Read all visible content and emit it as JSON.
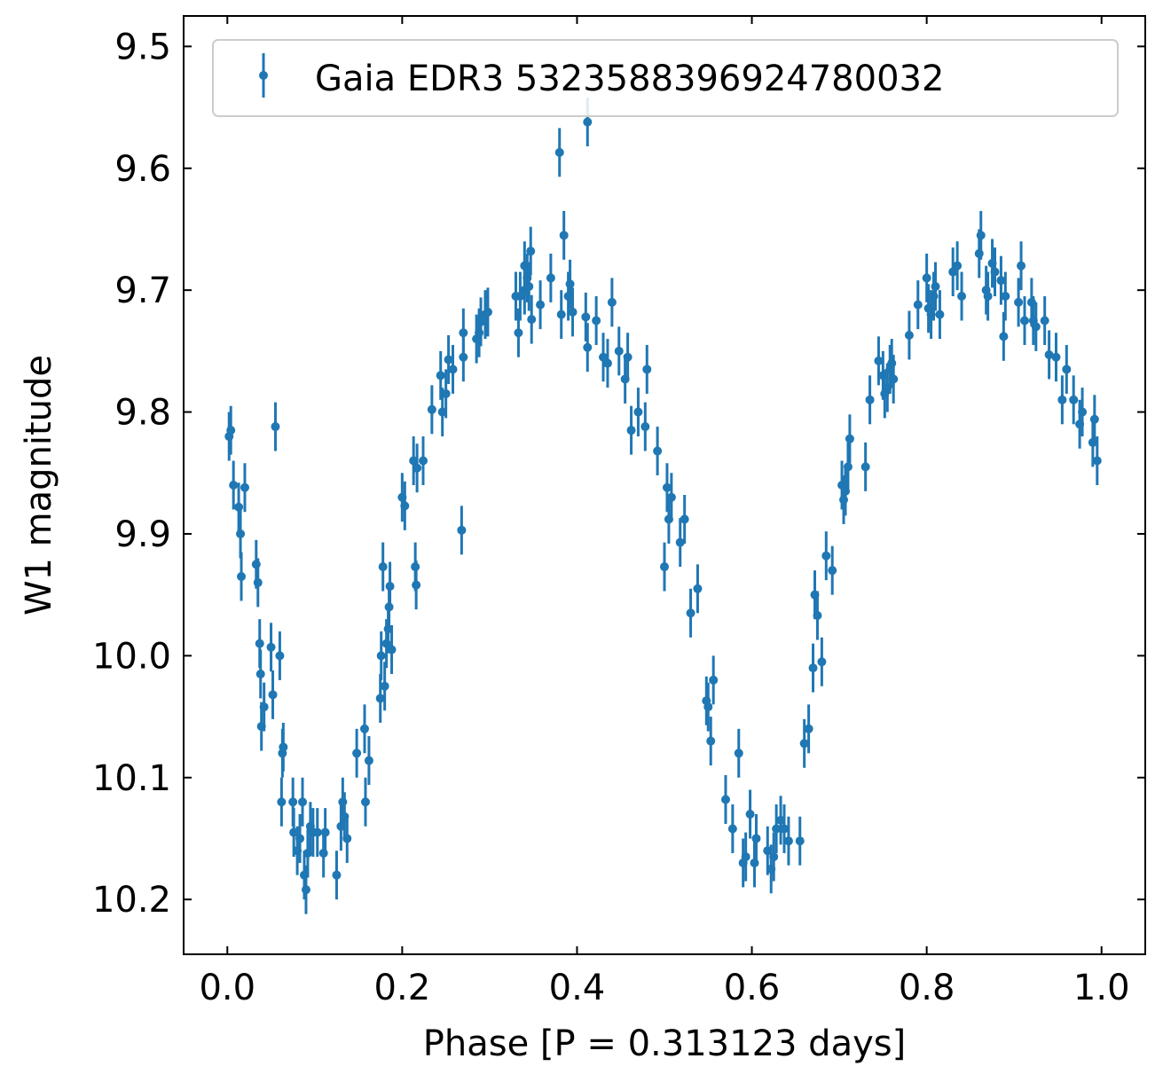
{
  "chart_data": {
    "type": "scatter",
    "xlabel": "Phase [P = 0.313123 days]",
    "ylabel": "W1 magnitude",
    "xlim": [
      -0.05,
      1.05
    ],
    "ylim": [
      10.245,
      9.475
    ],
    "y_inverted": true,
    "x_ticks": [
      0.0,
      0.2,
      0.4,
      0.6,
      0.8,
      1.0
    ],
    "x_tick_labels": [
      "0.0",
      "0.2",
      "0.4",
      "0.6",
      "0.8",
      "1.0"
    ],
    "y_ticks": [
      9.5,
      9.6,
      9.7,
      9.8,
      9.9,
      10.0,
      10.1,
      10.2
    ],
    "y_tick_labels": [
      "9.5",
      "9.6",
      "9.7",
      "9.8",
      "9.9",
      "10.0",
      "10.1",
      "10.2"
    ],
    "grid": false,
    "ticks_direction": "in",
    "legend_position": "top-right",
    "series": [
      {
        "name": "Gaia EDR3 5323588396924780032",
        "color": "#1f77b4",
        "marker": "point-with-errorbar",
        "error": 0.02,
        "points": [
          [
            0.002,
            9.82
          ],
          [
            0.004,
            9.815
          ],
          [
            0.007,
            9.86
          ],
          [
            0.013,
            9.878
          ],
          [
            0.015,
            9.9
          ],
          [
            0.016,
            9.935
          ],
          [
            0.02,
            9.862
          ],
          [
            0.033,
            9.925
          ],
          [
            0.035,
            9.94
          ],
          [
            0.037,
            9.99
          ],
          [
            0.038,
            10.015
          ],
          [
            0.039,
            10.058
          ],
          [
            0.042,
            10.042
          ],
          [
            0.05,
            9.993
          ],
          [
            0.052,
            10.032
          ],
          [
            0.055,
            9.812
          ],
          [
            0.06,
            10.0
          ],
          [
            0.062,
            10.12
          ],
          [
            0.063,
            10.08
          ],
          [
            0.064,
            10.075
          ],
          [
            0.075,
            10.12
          ],
          [
            0.076,
            10.145
          ],
          [
            0.08,
            10.16
          ],
          [
            0.083,
            10.15
          ],
          [
            0.086,
            10.12
          ],
          [
            0.088,
            10.18
          ],
          [
            0.09,
            10.192
          ],
          [
            0.092,
            10.162
          ],
          [
            0.095,
            10.14
          ],
          [
            0.098,
            10.145
          ],
          [
            0.103,
            10.145
          ],
          [
            0.11,
            10.162
          ],
          [
            0.112,
            10.145
          ],
          [
            0.125,
            10.18
          ],
          [
            0.13,
            10.14
          ],
          [
            0.132,
            10.12
          ],
          [
            0.134,
            10.132
          ],
          [
            0.137,
            10.15
          ],
          [
            0.148,
            10.08
          ],
          [
            0.157,
            10.06
          ],
          [
            0.158,
            10.12
          ],
          [
            0.162,
            10.086
          ],
          [
            0.175,
            10.035
          ],
          [
            0.176,
            10.0
          ],
          [
            0.178,
            9.927
          ],
          [
            0.18,
            10.025
          ],
          [
            0.182,
            9.99
          ],
          [
            0.184,
            9.978
          ],
          [
            0.185,
            9.96
          ],
          [
            0.186,
            9.943
          ],
          [
            0.188,
            9.995
          ],
          [
            0.2,
            9.87
          ],
          [
            0.203,
            9.877
          ],
          [
            0.213,
            9.84
          ],
          [
            0.215,
            9.927
          ],
          [
            0.216,
            9.942
          ],
          [
            0.217,
            9.846
          ],
          [
            0.224,
            9.84
          ],
          [
            0.234,
            9.798
          ],
          [
            0.244,
            9.77
          ],
          [
            0.246,
            9.8
          ],
          [
            0.25,
            9.785
          ],
          [
            0.253,
            9.757
          ],
          [
            0.258,
            9.765
          ],
          [
            0.268,
            9.897
          ],
          [
            0.27,
            9.735
          ],
          [
            0.27,
            9.755
          ],
          [
            0.285,
            9.74
          ],
          [
            0.288,
            9.735
          ],
          [
            0.29,
            9.726
          ],
          [
            0.295,
            9.72
          ],
          [
            0.298,
            9.718
          ],
          [
            0.33,
            9.705
          ],
          [
            0.333,
            9.735
          ],
          [
            0.335,
            9.705
          ],
          [
            0.34,
            9.7
          ],
          [
            0.34,
            9.68
          ],
          [
            0.343,
            9.69
          ],
          [
            0.345,
            9.697
          ],
          [
            0.347,
            9.668
          ],
          [
            0.348,
            9.724
          ],
          [
            0.358,
            9.712
          ],
          [
            0.37,
            9.69
          ],
          [
            0.38,
            9.587
          ],
          [
            0.382,
            9.72
          ],
          [
            0.385,
            9.655
          ],
          [
            0.39,
            9.705
          ],
          [
            0.392,
            9.695
          ],
          [
            0.395,
            9.718
          ],
          [
            0.41,
            9.722
          ],
          [
            0.412,
            9.747
          ],
          [
            0.412,
            9.562
          ],
          [
            0.422,
            9.725
          ],
          [
            0.43,
            9.755
          ],
          [
            0.435,
            9.76
          ],
          [
            0.44,
            9.71
          ],
          [
            0.448,
            9.75
          ],
          [
            0.455,
            9.773
          ],
          [
            0.458,
            9.755
          ],
          [
            0.462,
            9.815
          ],
          [
            0.47,
            9.8
          ],
          [
            0.478,
            9.812
          ],
          [
            0.48,
            9.765
          ],
          [
            0.492,
            9.832
          ],
          [
            0.5,
            9.927
          ],
          [
            0.503,
            9.862
          ],
          [
            0.505,
            9.888
          ],
          [
            0.508,
            9.87
          ],
          [
            0.518,
            9.907
          ],
          [
            0.523,
            9.888
          ],
          [
            0.53,
            9.965
          ],
          [
            0.538,
            9.945
          ],
          [
            0.548,
            10.037
          ],
          [
            0.55,
            10.042
          ],
          [
            0.553,
            10.07
          ],
          [
            0.556,
            10.02
          ],
          [
            0.57,
            10.118
          ],
          [
            0.578,
            10.142
          ],
          [
            0.585,
            10.08
          ],
          [
            0.59,
            10.17
          ],
          [
            0.593,
            10.165
          ],
          [
            0.598,
            10.13
          ],
          [
            0.603,
            10.17
          ],
          [
            0.605,
            10.15
          ],
          [
            0.618,
            10.16
          ],
          [
            0.622,
            10.175
          ],
          [
            0.625,
            10.165
          ],
          [
            0.628,
            10.142
          ],
          [
            0.633,
            10.135
          ],
          [
            0.637,
            10.142
          ],
          [
            0.642,
            10.152
          ],
          [
            0.655,
            10.152
          ],
          [
            0.66,
            10.072
          ],
          [
            0.665,
            10.06
          ],
          [
            0.67,
            10.01
          ],
          [
            0.672,
            9.95
          ],
          [
            0.675,
            9.967
          ],
          [
            0.68,
            10.005
          ],
          [
            0.685,
            9.918
          ],
          [
            0.692,
            9.93
          ],
          [
            0.703,
            9.86
          ],
          [
            0.705,
            9.872
          ],
          [
            0.707,
            9.865
          ],
          [
            0.71,
            9.845
          ],
          [
            0.712,
            9.822
          ],
          [
            0.73,
            9.845
          ],
          [
            0.735,
            9.79
          ],
          [
            0.745,
            9.758
          ],
          [
            0.75,
            9.77
          ],
          [
            0.752,
            9.785
          ],
          [
            0.755,
            9.78
          ],
          [
            0.758,
            9.765
          ],
          [
            0.76,
            9.76
          ],
          [
            0.762,
            9.773
          ],
          [
            0.78,
            9.737
          ],
          [
            0.79,
            9.712
          ],
          [
            0.8,
            9.69
          ],
          [
            0.802,
            9.715
          ],
          [
            0.805,
            9.72
          ],
          [
            0.808,
            9.705
          ],
          [
            0.81,
            9.697
          ],
          [
            0.815,
            9.72
          ],
          [
            0.83,
            9.685
          ],
          [
            0.835,
            9.68
          ],
          [
            0.84,
            9.705
          ],
          [
            0.86,
            9.67
          ],
          [
            0.862,
            9.655
          ],
          [
            0.868,
            9.7
          ],
          [
            0.87,
            9.705
          ],
          [
            0.875,
            9.678
          ],
          [
            0.878,
            9.685
          ],
          [
            0.885,
            9.692
          ],
          [
            0.888,
            9.738
          ],
          [
            0.89,
            9.705
          ],
          [
            0.905,
            9.71
          ],
          [
            0.908,
            9.68
          ],
          [
            0.912,
            9.725
          ],
          [
            0.92,
            9.71
          ],
          [
            0.922,
            9.725
          ],
          [
            0.925,
            9.73
          ],
          [
            0.935,
            9.725
          ],
          [
            0.94,
            9.753
          ],
          [
            0.948,
            9.755
          ],
          [
            0.955,
            9.79
          ],
          [
            0.96,
            9.765
          ],
          [
            0.968,
            9.79
          ],
          [
            0.975,
            9.81
          ],
          [
            0.978,
            9.8
          ],
          [
            0.99,
            9.825
          ],
          [
            0.992,
            9.806
          ],
          [
            0.995,
            9.84
          ]
        ]
      }
    ]
  }
}
